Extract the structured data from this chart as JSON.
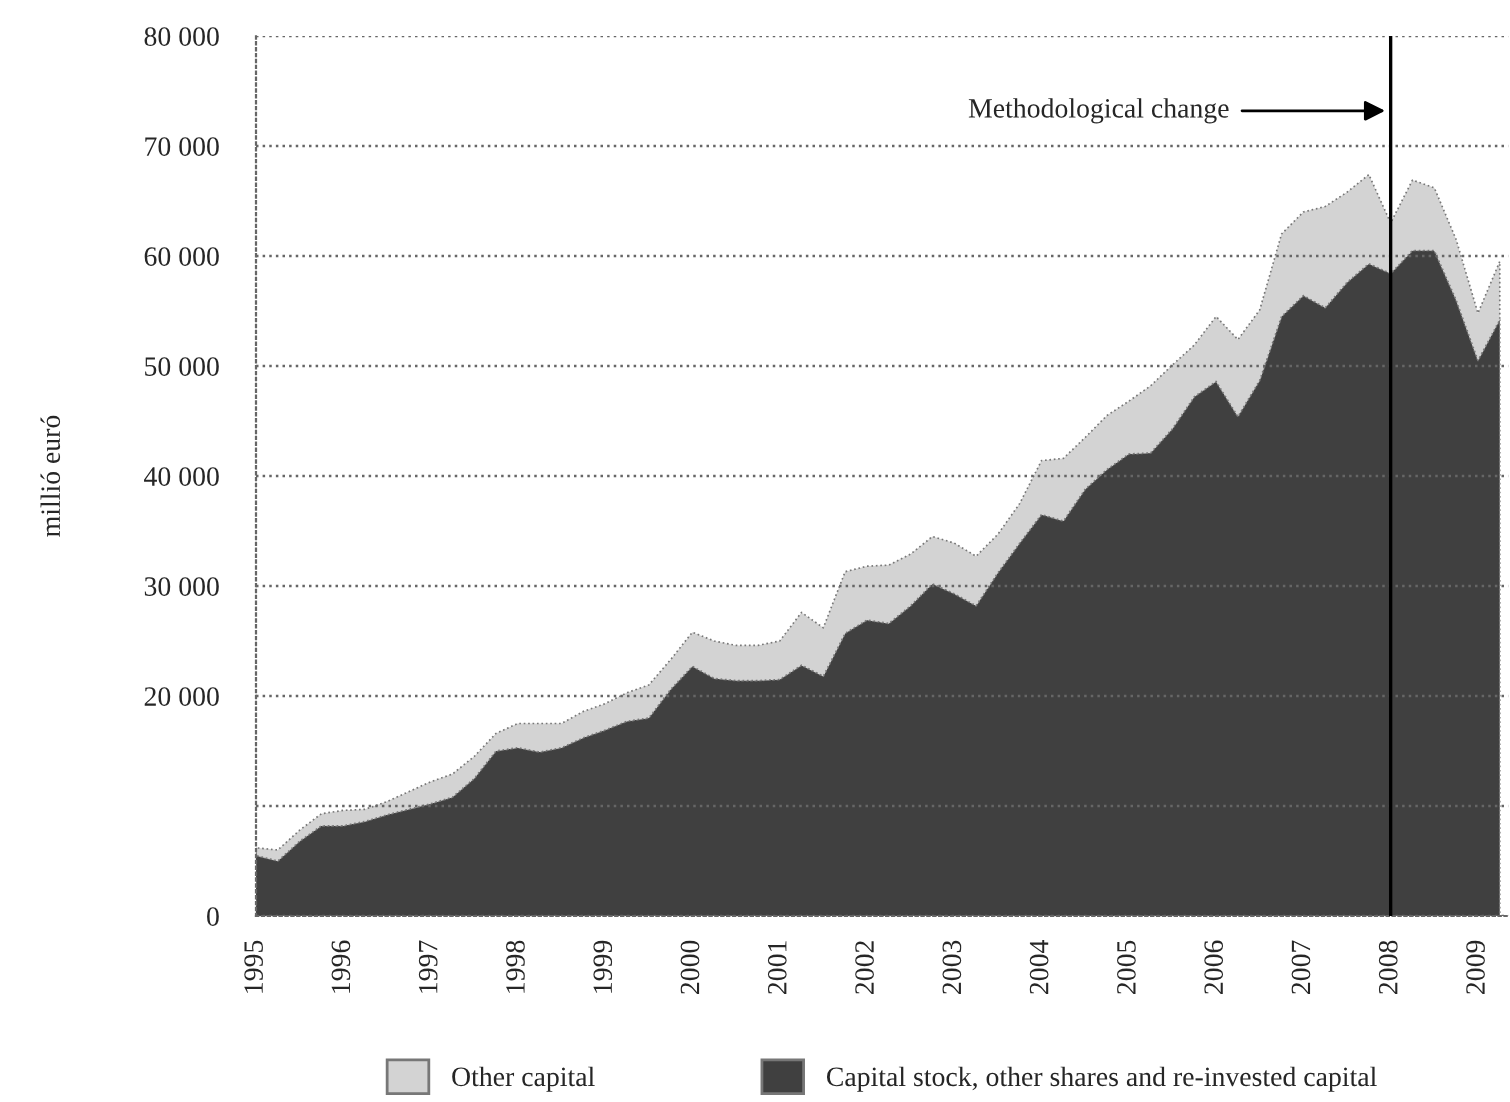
{
  "chart_data": {
    "type": "area",
    "stacked": true,
    "ylabel": "millió euró",
    "x": [
      1995.0,
      1995.25,
      1995.5,
      1995.75,
      1996.0,
      1996.25,
      1996.5,
      1996.75,
      1997.0,
      1997.25,
      1997.5,
      1997.75,
      1998.0,
      1998.25,
      1998.5,
      1998.75,
      1999.0,
      1999.25,
      1999.5,
      1999.75,
      2000.0,
      2000.25,
      2000.5,
      2000.75,
      2001.0,
      2001.25,
      2001.5,
      2001.75,
      2002.0,
      2002.25,
      2002.5,
      2002.75,
      2003.0,
      2003.25,
      2003.5,
      2003.75,
      2004.0,
      2004.25,
      2004.5,
      2004.75,
      2005.0,
      2005.25,
      2005.5,
      2005.75,
      2006.0,
      2006.25,
      2006.5,
      2006.75,
      2007.0,
      2007.25,
      2007.5,
      2007.75,
      2008.0,
      2008.25,
      2008.5,
      2008.75,
      2009.0,
      2009.25
    ],
    "series": [
      {
        "name": "Capital stock, other shares and re-invested capital",
        "color": "#404040",
        "values": [
          5500,
          5000,
          6800,
          8200,
          8200,
          8600,
          9200,
          9700,
          10200,
          10800,
          12500,
          15000,
          15300,
          14900,
          15300,
          16200,
          16900,
          17700,
          18000,
          20600,
          22700,
          21600,
          21400,
          21400,
          21500,
          22800,
          21800,
          25700,
          26900,
          26600,
          28200,
          30200,
          29300,
          28200,
          31200,
          33900,
          36500,
          35900,
          38800,
          40600,
          42000,
          42100,
          44300,
          47200,
          48600,
          45400,
          48700,
          54500,
          56400,
          55300,
          57600,
          59300,
          58400,
          60500,
          60500,
          56000,
          50500,
          54200
        ]
      },
      {
        "name": "Other capital",
        "color": "#d3d3d3",
        "values": [
          700,
          1000,
          1000,
          1100,
          1400,
          1100,
          1200,
          1600,
          2000,
          2100,
          2000,
          1600,
          2200,
          2600,
          2200,
          2400,
          2400,
          2600,
          3000,
          2700,
          3100,
          3400,
          3200,
          3200,
          3500,
          4800,
          4400,
          5600,
          4900,
          5300,
          4700,
          4300,
          4600,
          4500,
          3500,
          3600,
          4900,
          5700,
          4700,
          4900,
          4800,
          6100,
          5800,
          4700,
          5900,
          7000,
          6400,
          7500,
          7600,
          9200,
          8200,
          8100,
          4600,
          6400,
          5700,
          5500,
          4300,
          5300
        ]
      }
    ],
    "xlim": [
      1995,
      2009.35
    ],
    "xticks": [
      1995,
      1996,
      1997,
      1998,
      1999,
      2000,
      2001,
      2002,
      2003,
      2004,
      2005,
      2006,
      2007,
      2008,
      2009
    ],
    "ylim": [
      0,
      80000
    ],
    "yticks": [
      {
        "value": 0,
        "label": "0"
      },
      {
        "value": 10000,
        "label": null
      },
      {
        "value": 20000,
        "label": "20 000"
      },
      {
        "value": 30000,
        "label": "30 000"
      },
      {
        "value": 40000,
        "label": "40 000"
      },
      {
        "value": 50000,
        "label": "50 000"
      },
      {
        "value": 60000,
        "label": "60 000"
      },
      {
        "value": 70000,
        "label": "70 000"
      },
      {
        "value": 80000,
        "label": "80 000"
      }
    ],
    "grid": "y",
    "legend": "bottom",
    "ref_lines": [
      {
        "axis": "x",
        "value": 2008,
        "label": "Methodological change",
        "color": "#000000",
        "line_style": "solid"
      }
    ]
  }
}
